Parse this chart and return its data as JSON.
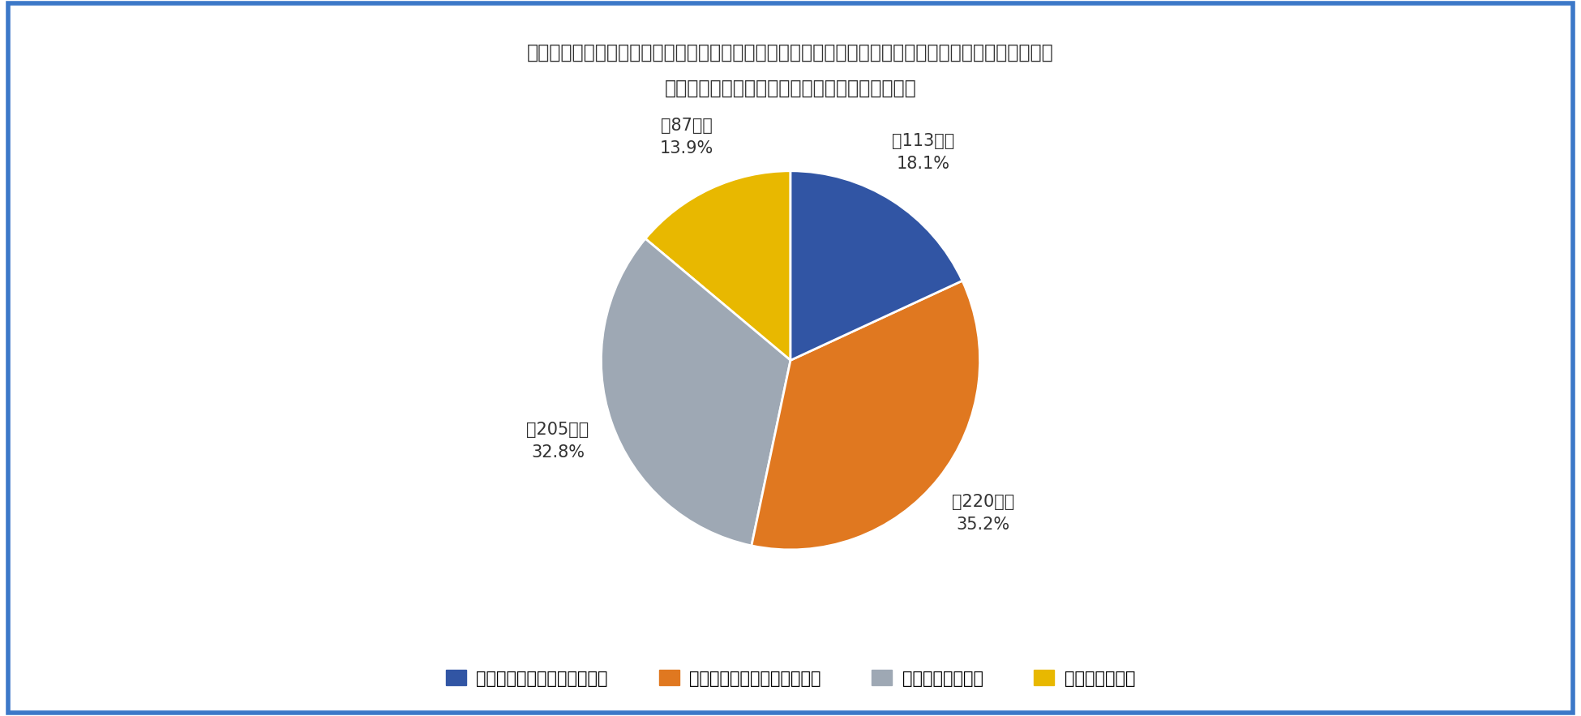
{
  "title_line1": "質問「女性特有の健康のお悩み（生理、出産及び産後の影響、更年期の影響、子宮や乳房の病気等）で",
  "title_line2": "お仕事や生活に影響が出たことがありますか？」",
  "slices": [
    {
      "label": "大きな影響がある（あった）",
      "count": 113,
      "percent": 18.1,
      "color": "#3155a4"
    },
    {
      "label": "若干の影響がある（あった）",
      "count": 220,
      "percent": 35.2,
      "color": "#e07820"
    },
    {
      "label": "あまり影響はない",
      "count": 205,
      "percent": 32.8,
      "color": "#9ea8b4"
    },
    {
      "label": "全く影響がない",
      "count": 87,
      "percent": 13.9,
      "color": "#e8b800"
    }
  ],
  "background_color": "#ffffff",
  "border_color": "#3c78c8",
  "title_fontsize": 17,
  "legend_fontsize": 15,
  "label_fontsize": 15
}
